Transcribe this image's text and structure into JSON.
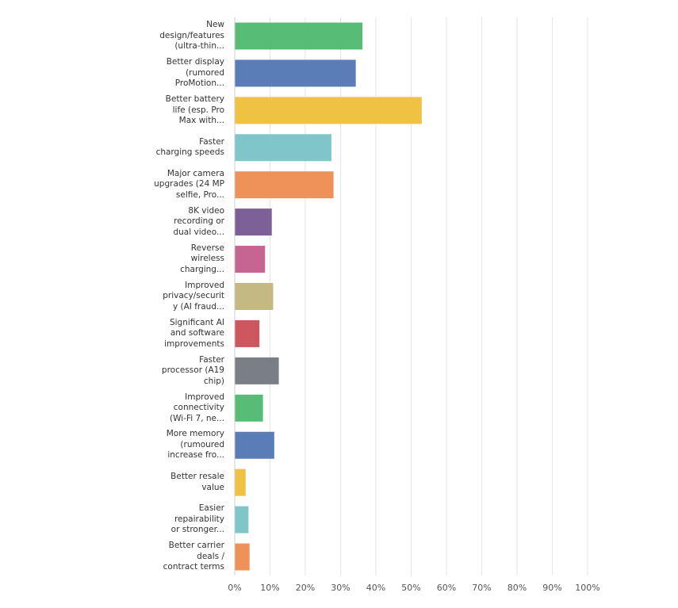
{
  "chart_data": {
    "type": "bar",
    "orientation": "horizontal",
    "categories": [
      [
        "New",
        "design/features",
        "(ultra-thin..."
      ],
      [
        "Better display",
        "(rumored",
        "ProMotion..."
      ],
      [
        "Better battery",
        "life (esp. Pro",
        "Max with..."
      ],
      [
        "Faster",
        "charging speeds"
      ],
      [
        "Major camera",
        "upgrades (24 MP",
        "selfie, Pro..."
      ],
      [
        "8K video",
        "recording or",
        "dual video..."
      ],
      [
        "Reverse",
        "wireless",
        "charging..."
      ],
      [
        "Improved",
        "privacy/securit",
        "y (AI fraud..."
      ],
      [
        "Significant AI",
        "and software",
        "improvements"
      ],
      [
        "Faster",
        "processor (A19",
        "chip)"
      ],
      [
        "Improved",
        "connectivity",
        "(Wi-Fi 7, ne..."
      ],
      [
        "More memory",
        "(rumoured",
        "increase fro..."
      ],
      [
        "Better resale",
        "value"
      ],
      [
        "Easier",
        "repairability",
        "or stronger..."
      ],
      [
        "Better carrier",
        "deals /",
        "contract terms"
      ]
    ],
    "values": [
      36.2,
      34.3,
      53.0,
      27.4,
      28.0,
      10.5,
      8.6,
      10.9,
      7.0,
      12.5,
      8.0,
      11.2,
      3.1,
      3.9,
      4.2
    ],
    "colors": [
      "#57bd76",
      "#5a7db8",
      "#f0c244",
      "#80c6c9",
      "#ef925a",
      "#7d6095",
      "#c66592",
      "#c5b983",
      "#ce575f",
      "#7a7f86",
      "#57bd76",
      "#5a7db8",
      "#f0c244",
      "#80c6c9",
      "#ef925a"
    ],
    "xlim": [
      0,
      100
    ],
    "xticks": [
      "0%",
      "10%",
      "20%",
      "30%",
      "40%",
      "50%",
      "60%",
      "70%",
      "80%",
      "90%",
      "100%"
    ],
    "grid": true,
    "title": "",
    "xlabel": "",
    "ylabel": ""
  }
}
